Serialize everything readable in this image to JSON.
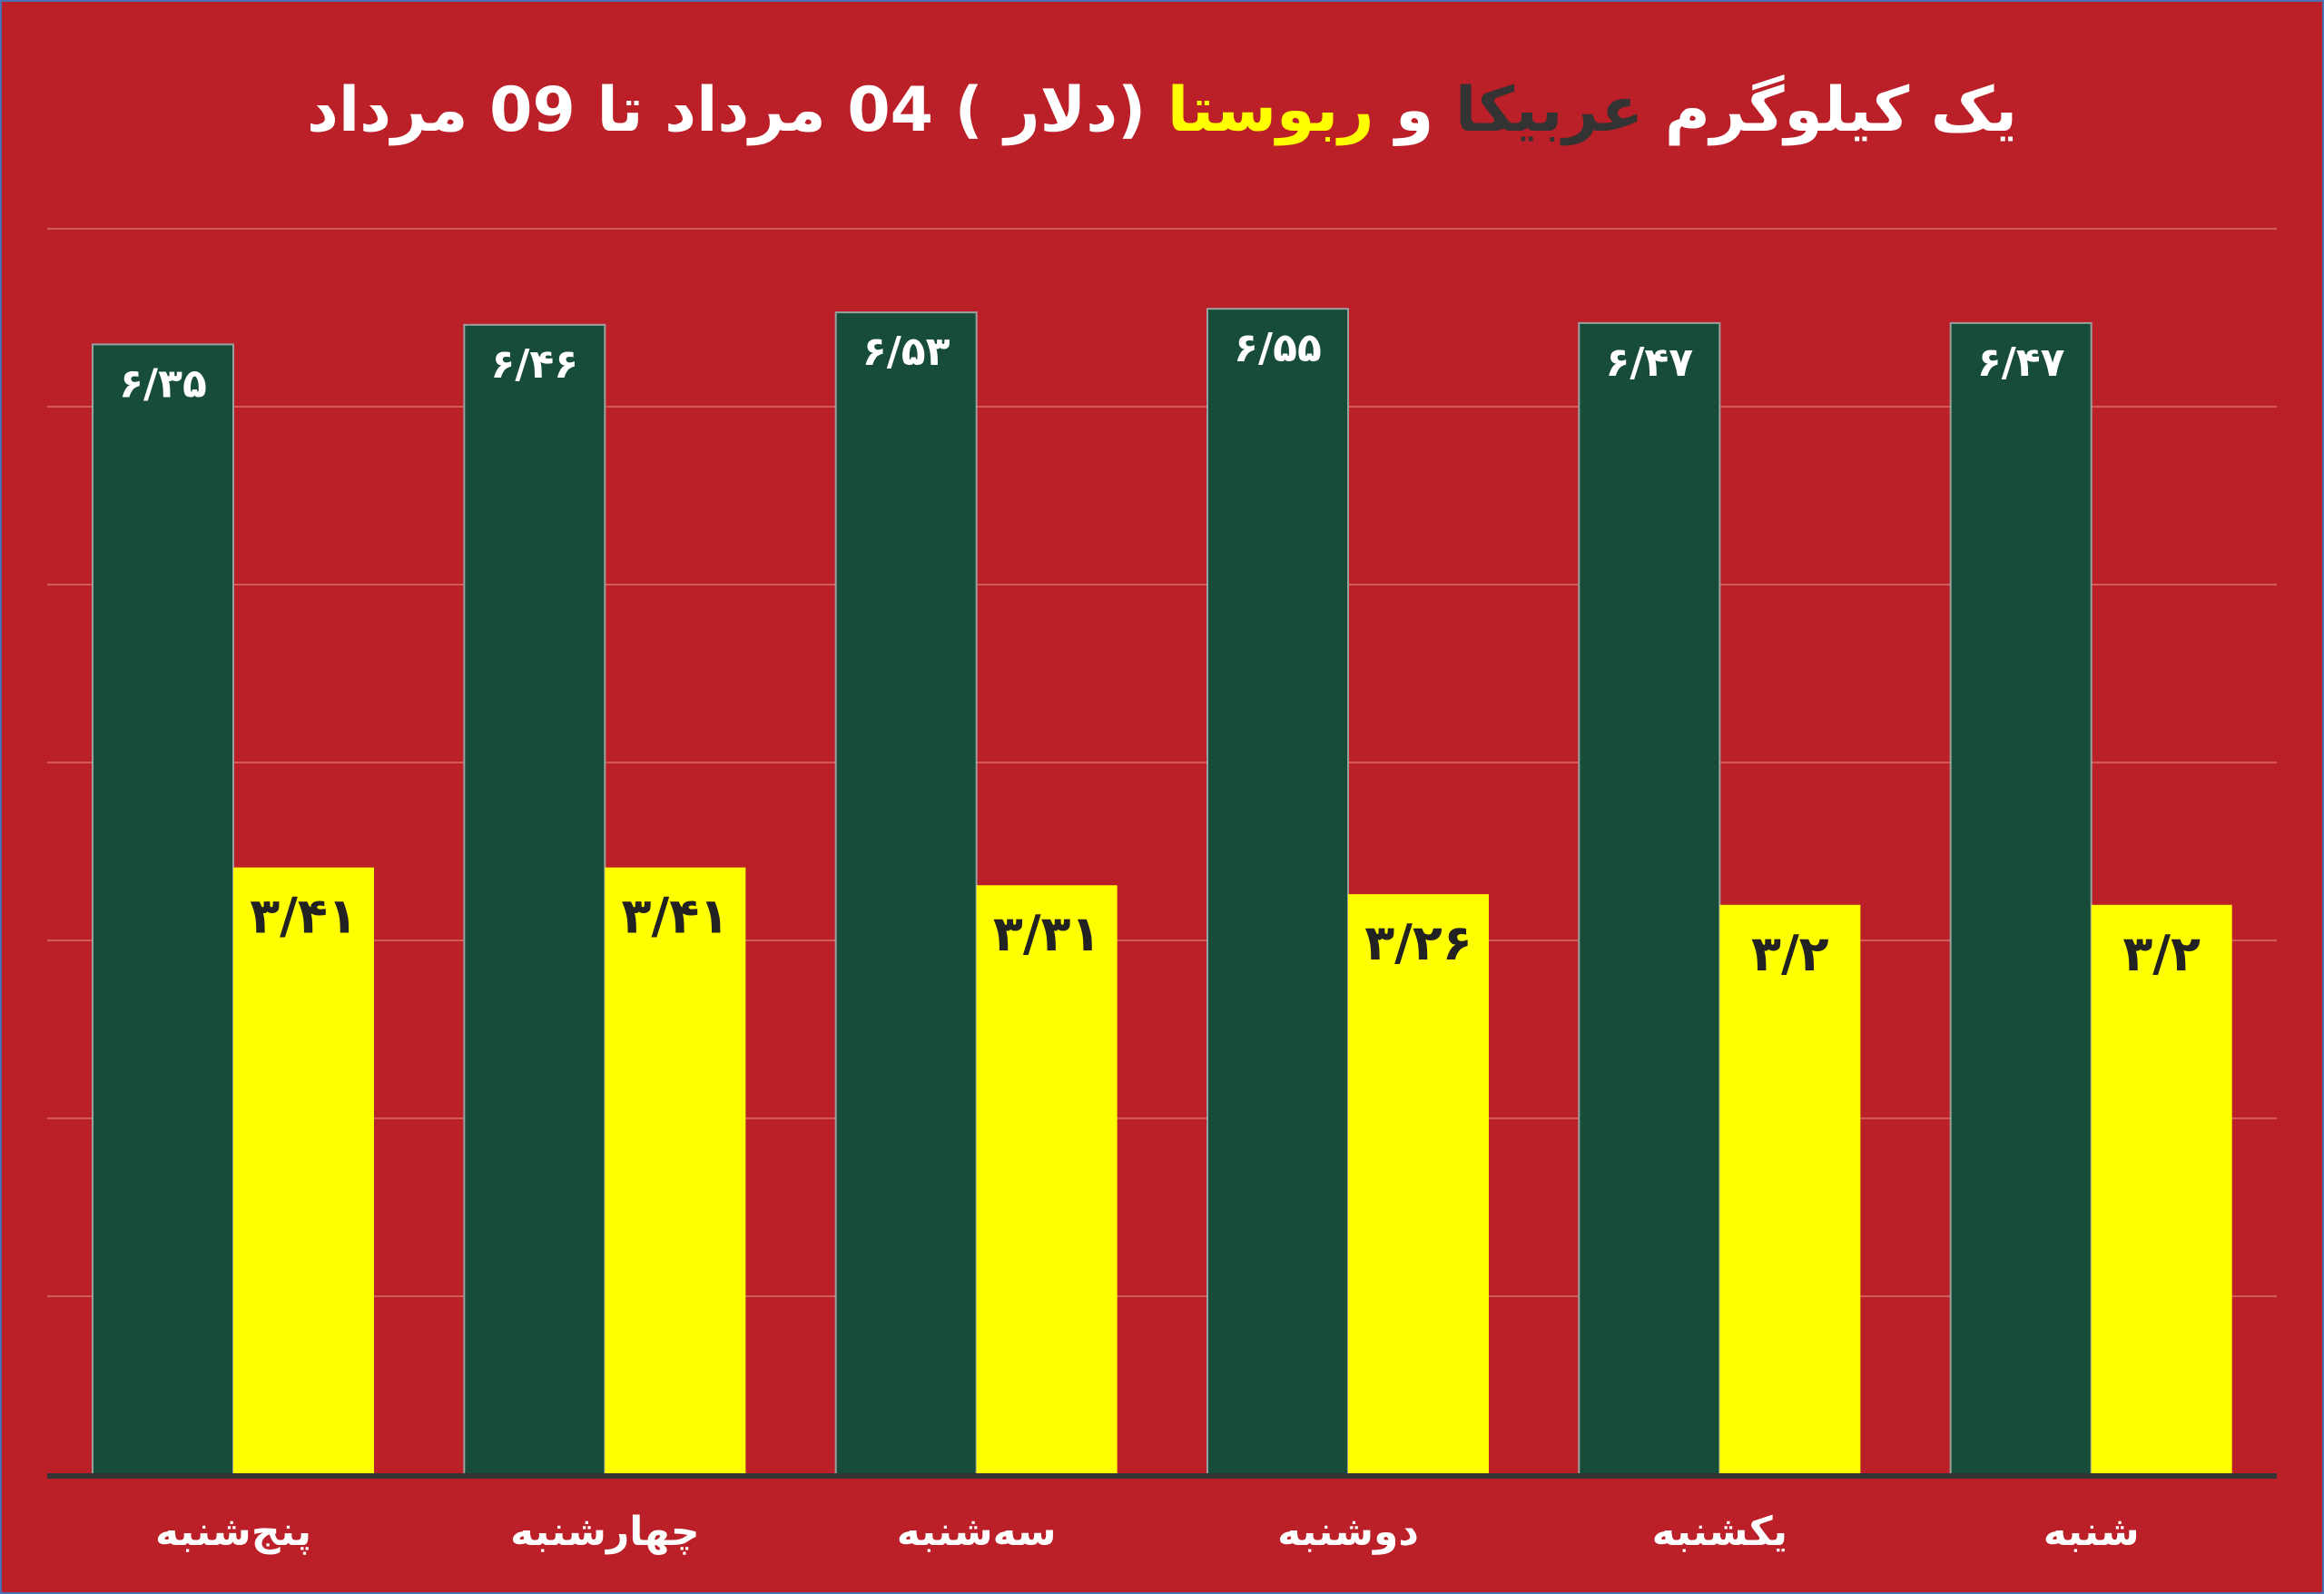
{
  "title": {
    "part1": "یک کیلوگرم",
    "arabica": "عربیکا",
    "part2": "و",
    "robusta": "ربوستا",
    "part3": "(دلار ) 04 مرداد تا 09 مرداد"
  },
  "colors": {
    "background": "#bb1f27",
    "arabica": "#174d38",
    "robusta": "#ffff00",
    "gridline": "#d35a5a",
    "axis": "#333333",
    "title_arabica": "#333333",
    "title_robusta": "#ffff00"
  },
  "chart_data": {
    "type": "bar",
    "title": "یک کیلوگرم عربیکا و ربوستا (دلار ) 04 مرداد تا 09 مرداد",
    "categories": [
      "پنج‌شنبه",
      "چهارشنبه",
      "سه‌شنبه",
      "دوشنبه",
      "یکشنبه",
      "شنبه"
    ],
    "series": [
      {
        "key": "arabica",
        "values": [
          6.35,
          6.46,
          6.53,
          6.55,
          6.47,
          6.47
        ],
        "labels": [
          "۶/۳۵",
          "۶/۴۶",
          "۶/۵۳",
          "۶/۵۵",
          "۶/۴۷",
          "۶/۴۷"
        ]
      },
      {
        "key": "robusta",
        "values": [
          3.41,
          3.41,
          3.31,
          3.26,
          3.2,
          3.2
        ],
        "labels": [
          "۳/۴۱",
          "۳/۴۱",
          "۳/۳۱",
          "۳/۲۶",
          "۳/۲",
          "۳/۲"
        ]
      }
    ],
    "ylim": [
      0,
      7
    ],
    "gridline_step": 1,
    "grid": true,
    "xlabel": "",
    "ylabel": ""
  }
}
